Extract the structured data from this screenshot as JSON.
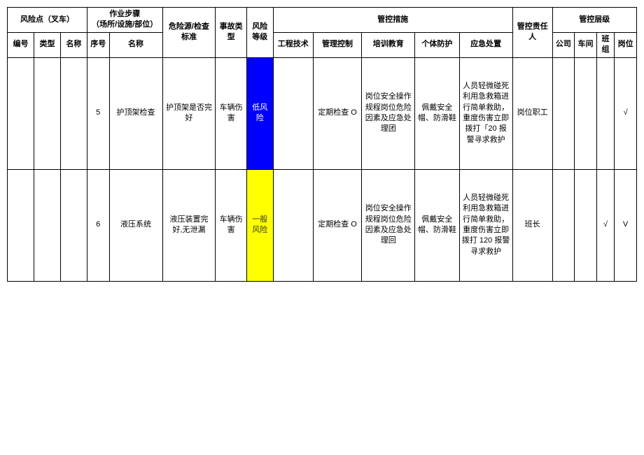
{
  "header": {
    "risk_point_group": "风险点（叉车）",
    "work_step_group": "作业步骤\n（场所/设施/部位）",
    "hazard_standard": "危险源/检查标准",
    "accident_type": "事故类型",
    "risk_level": "风险等级",
    "control_measures_group": "管控措施",
    "responsible": "管控责任人",
    "control_level_group": "管控层级",
    "id": "编号",
    "type": "类型",
    "name": "名称",
    "seq": "序号",
    "step_name": "名称",
    "eng": "工程技术",
    "mgmt": "管理控制",
    "train": "培训教育",
    "ppe": "个体防护",
    "emerg": "应急处置",
    "company": "公司",
    "shop": "车间",
    "team": "班组",
    "post": "岗位"
  },
  "rows": [
    {
      "id": "",
      "type": "",
      "name": "",
      "seq": "5",
      "step_name": "护顶架检查",
      "hazard": "护顶架是否完好",
      "accident": "车辆伤害",
      "risk_label": "低风险",
      "risk_class": "risk-low",
      "eng": "",
      "mgmt": "定期检查 O",
      "train": "岗位安全操作规程岗位危险因素及应急处理团",
      "ppe": "佩戴安全帽、防滑鞋",
      "emerg": "人员轻微碰死利用急救箱进行简单救助，重度伤害立即拨打「20 报警寻求救护",
      "resp": "岗位职工",
      "company": "",
      "shop": "",
      "team": "",
      "post": "√"
    },
    {
      "id": "",
      "type": "",
      "name": "",
      "seq": "6",
      "step_name": "液压系统",
      "hazard": "液压装置完好,无泄漏",
      "accident": "车辆伤害",
      "risk_label": "一般风险",
      "risk_class": "risk-normal",
      "eng": "",
      "mgmt": "定期检查 O",
      "train": "岗位安全操作规程岗位危险因素及应急处理回",
      "ppe": "佩戴安全帽、防滑鞋",
      "emerg": "人员轻微碰死利用急救箱进行简单救助，重度伤害立即拨打 120 报警寻求救护",
      "resp": "班长",
      "company": "",
      "shop": "",
      "team": "√",
      "post": "V"
    }
  ],
  "colors": {
    "border": "#000000",
    "background": "#ffffff",
    "risk_low_bg": "#0000ff",
    "risk_low_text": "#ffffff",
    "risk_normal_bg": "#ffff00",
    "risk_normal_text": "#333333"
  },
  "fontsize": 11
}
